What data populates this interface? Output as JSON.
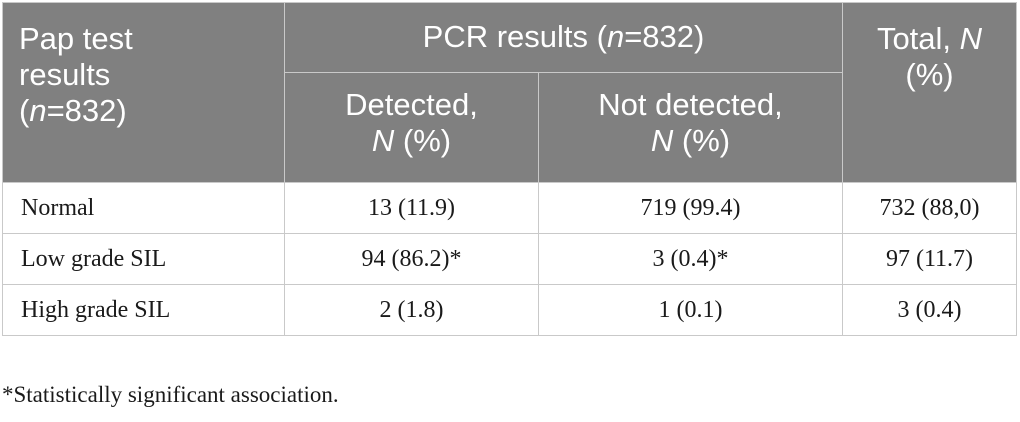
{
  "table": {
    "header": {
      "stub_line1": "Pap test",
      "stub_line2": "results",
      "stub_n_open": "(",
      "stub_n_var": "n",
      "stub_n_rest": "=832)",
      "pcr_prefix": "PCR results (",
      "pcr_var": "n",
      "pcr_rest": "=832)",
      "total_prefix": "Total, ",
      "total_var": "N",
      "total_line2": "(%)",
      "detected_line1": "Detected,",
      "detected_var": "N",
      "detected_rest": " (%)",
      "not_detected_line1": "Not detected,",
      "not_detected_var": "N",
      "not_detected_rest": " (%)"
    },
    "rows": [
      {
        "label": "Normal",
        "detected": "13 (11.9)",
        "not_detected": "719 (99.4)",
        "total": "732 (88,0)"
      },
      {
        "label": "Low grade SIL",
        "detected": "94 (86.2)*",
        "not_detected": "3 (0.4)*",
        "total": "97 (11.7)"
      },
      {
        "label": "High grade SIL",
        "detected": "2 (1.8)",
        "not_detected": "1 (0.1)",
        "total": "3 (0.4)"
      }
    ],
    "footnote": "*Statistically significant association."
  }
}
